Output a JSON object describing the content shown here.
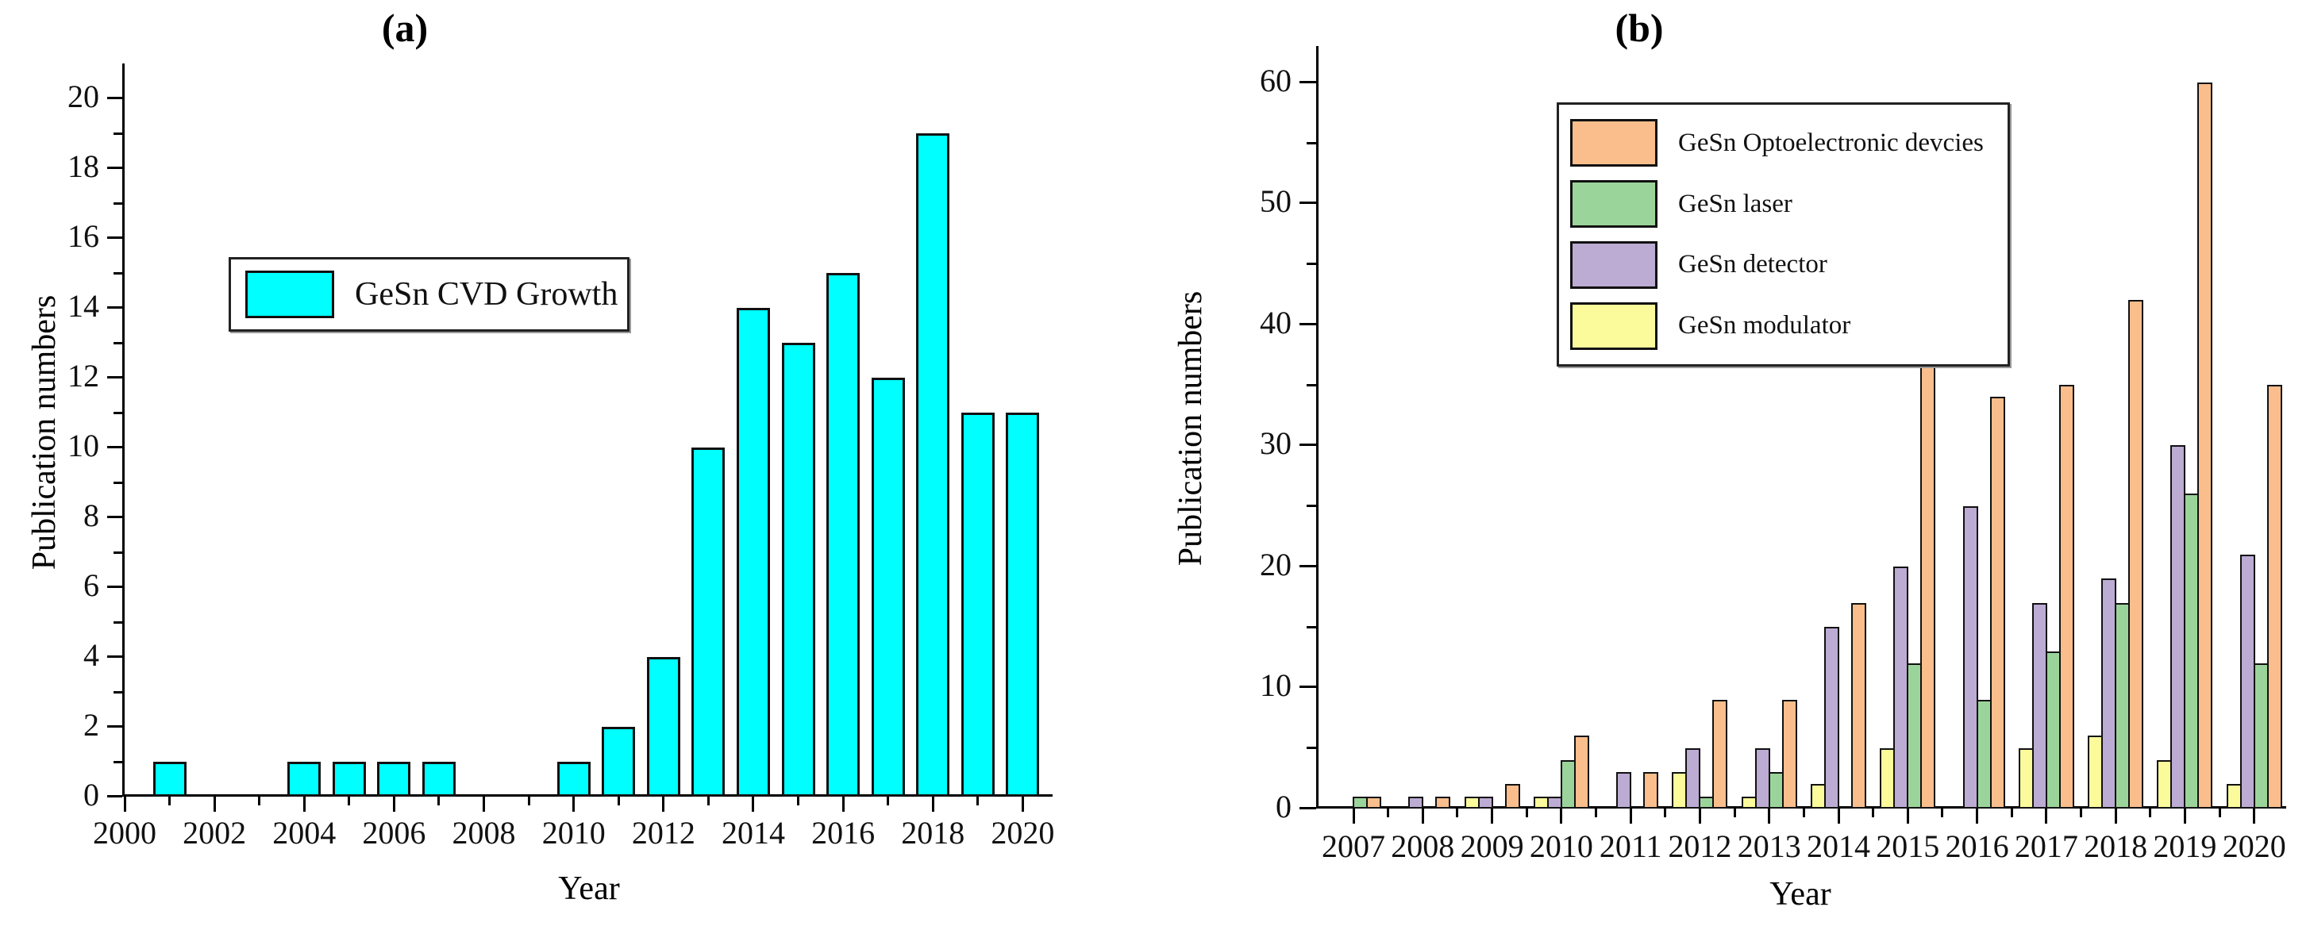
{
  "figure": {
    "background": "#ffffff",
    "axis_color": "#000000",
    "bar_border_color": "#111111"
  },
  "chart_data": [
    {
      "type": "bar",
      "panel": "a",
      "title": "(a)",
      "xlabel": "Year",
      "ylabel": "Publication numbers",
      "legend_position": "upper-left-inside",
      "grid": false,
      "ylim": [
        0,
        21
      ],
      "yticks_major": [
        0,
        2,
        4,
        6,
        8,
        10,
        12,
        14,
        16,
        18,
        20
      ],
      "yticks_minor": [
        1,
        3,
        5,
        7,
        9,
        11,
        13,
        15,
        17,
        19
      ],
      "xticks_labeled": [
        "2000",
        "2002",
        "2004",
        "2006",
        "2008",
        "2010",
        "2012",
        "2014",
        "2016",
        "2018",
        "2020"
      ],
      "x": [
        2000,
        2001,
        2002,
        2003,
        2004,
        2005,
        2006,
        2007,
        2008,
        2009,
        2010,
        2011,
        2012,
        2013,
        2014,
        2015,
        2016,
        2017,
        2018,
        2019,
        2020
      ],
      "series": [
        {
          "name": "GeSn CVD Growth",
          "color": "#00FFFF",
          "values": [
            0,
            1,
            0,
            0,
            1,
            1,
            1,
            1,
            0,
            0,
            1,
            2,
            4,
            10,
            14,
            13,
            15,
            12,
            19,
            11,
            11
          ]
        }
      ]
    },
    {
      "type": "bar",
      "panel": "b",
      "title": "(b)",
      "xlabel": "Year",
      "ylabel": "Publication numbers",
      "legend_position": "upper-left-inside",
      "grid": false,
      "ylim": [
        0,
        63
      ],
      "yticks_major": [
        0,
        10,
        20,
        30,
        40,
        50,
        60
      ],
      "yticks_minor": [
        5,
        15,
        25,
        35,
        45,
        55
      ],
      "categories": [
        "2007",
        "2008",
        "2009",
        "2010",
        "2011",
        "2012",
        "2013",
        "2014",
        "2015",
        "2016",
        "2017",
        "2018",
        "2019",
        "2020"
      ],
      "series": [
        {
          "name": "GeSn Optoelectronic devcies",
          "color": "#F9BE8C",
          "values": [
            1,
            1,
            2,
            6,
            3,
            9,
            9,
            17,
            37,
            34,
            35,
            42,
            60,
            35
          ]
        },
        {
          "name": "GeSn laser",
          "color": "#9BD49A",
          "values": [
            1,
            0,
            0,
            4,
            0,
            1,
            3,
            0,
            12,
            9,
            13,
            17,
            26,
            12
          ]
        },
        {
          "name": "GeSn detector",
          "color": "#BCABD3",
          "values": [
            0,
            1,
            1,
            1,
            3,
            5,
            5,
            15,
            20,
            25,
            17,
            19,
            30,
            21
          ]
        },
        {
          "name": "GeSn modulator",
          "color": "#FBFB9C",
          "values": [
            0,
            0,
            1,
            1,
            0,
            3,
            1,
            2,
            5,
            0,
            5,
            6,
            4,
            2
          ]
        }
      ],
      "bar_order_left_to_right": [
        "GeSn modulator",
        "GeSn detector",
        "GeSn laser",
        "GeSn Optoelectronic devcies"
      ]
    }
  ]
}
